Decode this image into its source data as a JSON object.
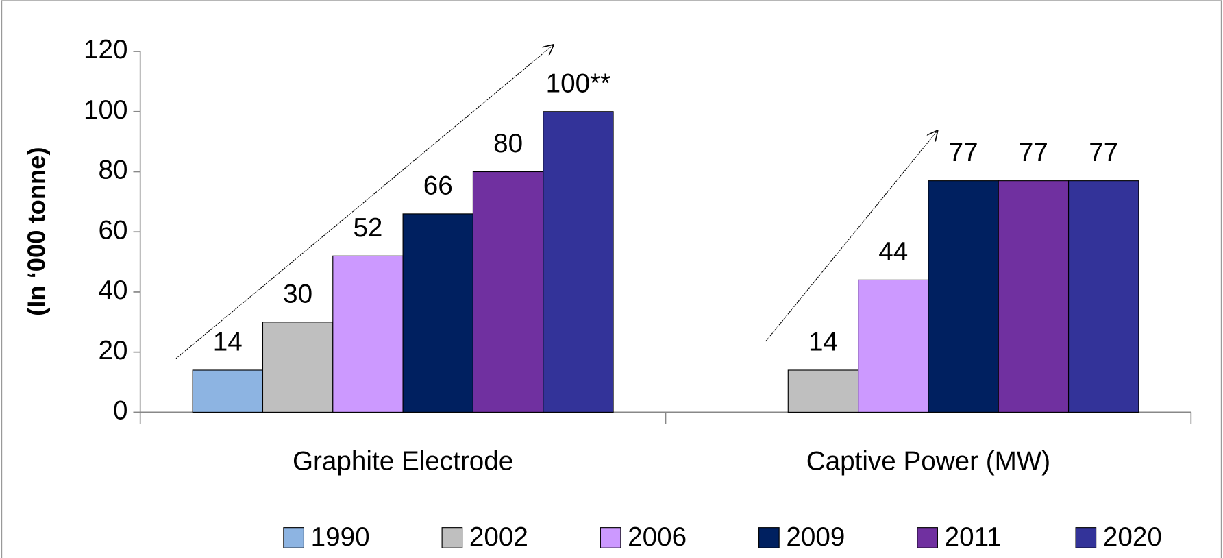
{
  "chart_data": {
    "type": "bar",
    "ylabel": "(In ‘000 tonne)",
    "categories": [
      "Graphite Electrode",
      "Captive Power (MW)"
    ],
    "series": [
      {
        "name": "1990",
        "color": "#8db4e2",
        "values": [
          14,
          null
        ]
      },
      {
        "name": "2002",
        "color": "#bfbfbf",
        "values": [
          30,
          14
        ]
      },
      {
        "name": "2006",
        "color": "#cc99ff",
        "values": [
          52,
          44
        ]
      },
      {
        "name": "2009",
        "color": "#002060",
        "values": [
          66,
          77
        ]
      },
      {
        "name": "2011",
        "color": "#7030a0",
        "values": [
          80,
          77
        ]
      },
      {
        "name": "2020",
        "color": "#333399",
        "values": [
          100,
          77
        ],
        "value_labels": [
          "100**",
          "77"
        ]
      }
    ],
    "ylim": [
      0,
      120
    ],
    "yticks": [
      0,
      20,
      40,
      60,
      80,
      100,
      120
    ],
    "legend": "bottom"
  }
}
